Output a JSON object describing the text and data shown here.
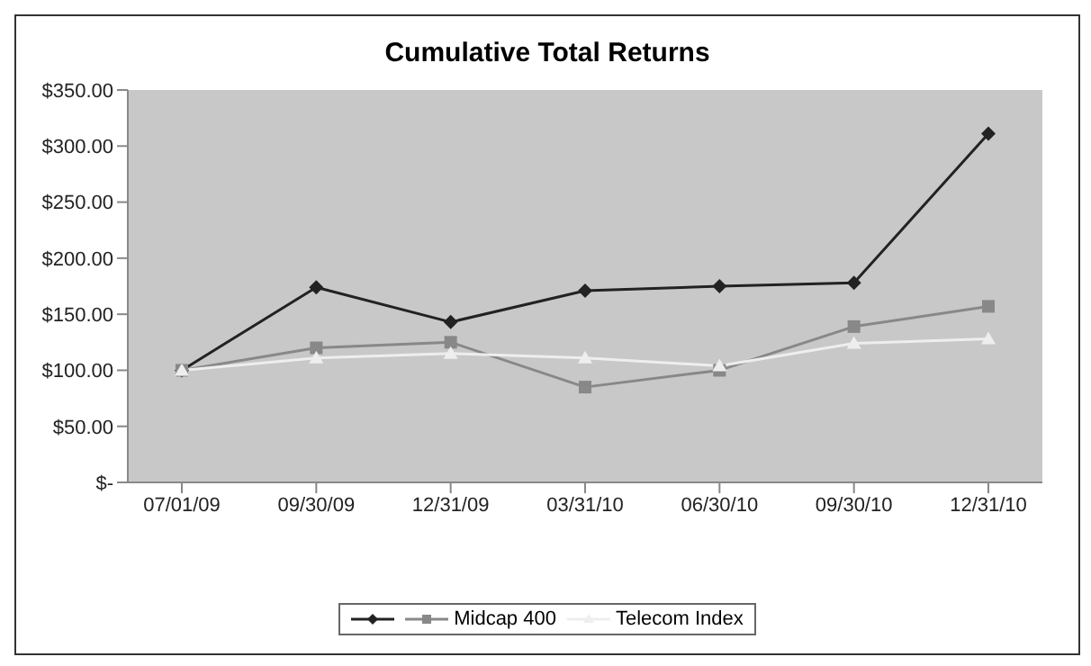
{
  "chart_data": {
    "type": "line",
    "title": "Cumulative Total Returns",
    "categories": [
      "07/01/09",
      "09/30/09",
      "12/31/09",
      "03/31/10",
      "06/30/10",
      "09/30/10",
      "12/31/10"
    ],
    "series": [
      {
        "color": "#222222",
        "marker": "diamond",
        "values": [
          100,
          174,
          143,
          171,
          175,
          178,
          311
        ]
      },
      {
        "name": "Midcap 400",
        "color": "#888888",
        "marker": "square",
        "values": [
          100,
          120,
          125,
          85,
          100,
          139,
          157
        ]
      },
      {
        "name": "Telecom Index",
        "color": "#eeeeee",
        "marker": "triangle",
        "values": [
          100,
          111,
          115,
          111,
          104,
          124,
          128
        ]
      }
    ],
    "ylim": [
      0,
      350
    ],
    "yticks": [
      {
        "value": 0,
        "label": "$-"
      },
      {
        "value": 50,
        "label": "$50.00"
      },
      {
        "value": 100,
        "label": "$100.00"
      },
      {
        "value": 150,
        "label": "$150.00"
      },
      {
        "value": 200,
        "label": "$200.00"
      },
      {
        "value": 250,
        "label": "$250.00"
      },
      {
        "value": 300,
        "label": "$300.00"
      },
      {
        "value": 350,
        "label": "$350.00"
      }
    ],
    "grid": false,
    "legend": "bottom"
  }
}
